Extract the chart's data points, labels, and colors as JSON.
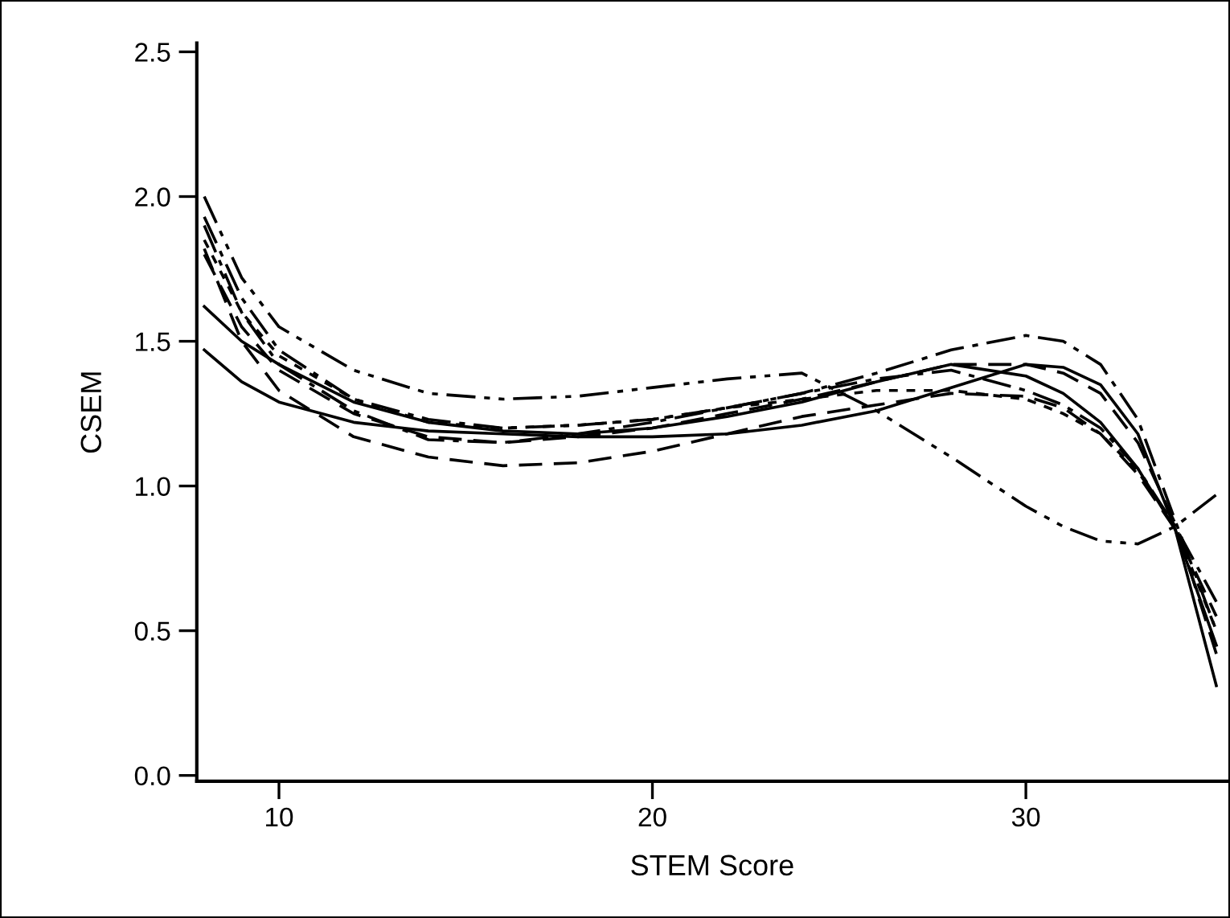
{
  "chart_data": {
    "type": "line",
    "xlabel": "STEM Score",
    "ylabel": "CSEM",
    "x": [
      8,
      9,
      10,
      12,
      14,
      16,
      18,
      20,
      22,
      24,
      26,
      28,
      30,
      31,
      32,
      33,
      34,
      35.1
    ],
    "xlim": [
      7.8,
      35.4
    ],
    "xticks": [
      10,
      20,
      30
    ],
    "ylim": [
      -0.02,
      2.53
    ],
    "yticks": [
      {
        "value": 0,
        "label": "0.0"
      },
      {
        "value": 0.5,
        "label": "0.5"
      },
      {
        "value": 1,
        "label": "1.0"
      },
      {
        "value": 1.5,
        "label": "1.5"
      },
      {
        "value": 2,
        "label": "2.0"
      },
      {
        "value": 2.5,
        "label": "2.5"
      }
    ],
    "grid": false,
    "legend": false,
    "marker": "none",
    "series": [
      {
        "color": "#000000",
        "line_style": "solid",
        "values": [
          1.47,
          1.36,
          1.29,
          1.22,
          1.19,
          1.18,
          1.17,
          1.17,
          1.18,
          1.21,
          1.26,
          1.34,
          1.42,
          1.41,
          1.35,
          1.18,
          0.85,
          0.31
        ]
      },
      {
        "color": "#000000",
        "line_style": "solid",
        "values": [
          1.62,
          1.5,
          1.42,
          1.29,
          1.22,
          1.19,
          1.18,
          1.2,
          1.24,
          1.29,
          1.36,
          1.42,
          1.38,
          1.32,
          1.22,
          1.06,
          0.85,
          0.45
        ]
      },
      {
        "color": "#000000",
        "line_style": "dashdotdot",
        "values": [
          2.0,
          1.72,
          1.55,
          1.4,
          1.32,
          1.3,
          1.31,
          1.34,
          1.37,
          1.39,
          1.26,
          1.1,
          0.93,
          0.86,
          0.81,
          0.8,
          0.86,
          0.97
        ]
      },
      {
        "color": "#000000",
        "line_style": "dashdot",
        "values": [
          1.93,
          1.65,
          1.47,
          1.3,
          1.23,
          1.2,
          1.21,
          1.23,
          1.27,
          1.32,
          1.39,
          1.47,
          1.52,
          1.5,
          1.42,
          1.23,
          0.88,
          0.5
        ]
      },
      {
        "color": "#000000",
        "line_style": "dashed",
        "values": [
          1.82,
          1.5,
          1.33,
          1.17,
          1.1,
          1.07,
          1.08,
          1.12,
          1.18,
          1.24,
          1.28,
          1.32,
          1.31,
          1.27,
          1.18,
          1.04,
          0.85,
          0.55
        ]
      },
      {
        "color": "#000000",
        "line_style": "dashed",
        "values": [
          1.8,
          1.55,
          1.4,
          1.25,
          1.17,
          1.15,
          1.17,
          1.2,
          1.25,
          1.3,
          1.36,
          1.42,
          1.42,
          1.39,
          1.32,
          1.15,
          0.87,
          0.42
        ]
      },
      {
        "color": "#000000",
        "line_style": "dashdot",
        "values": [
          1.9,
          1.6,
          1.42,
          1.26,
          1.16,
          1.15,
          1.18,
          1.22,
          1.27,
          1.32,
          1.37,
          1.4,
          1.33,
          1.28,
          1.2,
          1.06,
          0.86,
          0.6
        ]
      },
      {
        "color": "#000000",
        "line_style": "dotted",
        "values": [
          1.85,
          1.6,
          1.45,
          1.3,
          1.22,
          1.2,
          1.21,
          1.23,
          1.27,
          1.3,
          1.33,
          1.33,
          1.3,
          1.25,
          1.18,
          1.05,
          0.86,
          0.5
        ]
      }
    ]
  }
}
